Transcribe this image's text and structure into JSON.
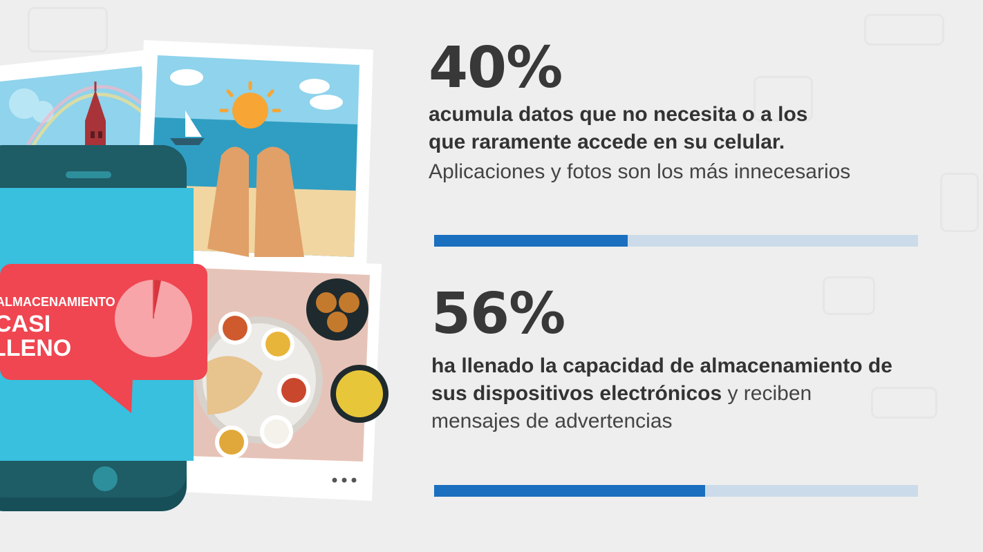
{
  "illustration": {
    "bubble_line1": "ALMACENAMIENTO",
    "bubble_line2": "CASI",
    "bubble_line3": "LLENO"
  },
  "stats": [
    {
      "percent_label": "40%",
      "value": 40,
      "bold_line1": "acumula datos que no necesita o a los",
      "bold_line2": "que raramente accede en su celular.",
      "light_line": "Aplicaciones y fotos son los más innecesarios"
    },
    {
      "percent_label": "56%",
      "value": 56,
      "bold_line1": "ha llenado la capacidad de almacenamiento de",
      "bold_line2": "sus dispositivos electrónicos",
      "light_after_bold": " y reciben",
      "light_line": "mensajes de advertencias"
    }
  ],
  "colors": {
    "bar_fill": "#1a6fbf",
    "bar_track": "#cbdbe9",
    "bubble": "#ef4651",
    "phone_body": "#1e5c66",
    "phone_screen": "#38c0de"
  }
}
